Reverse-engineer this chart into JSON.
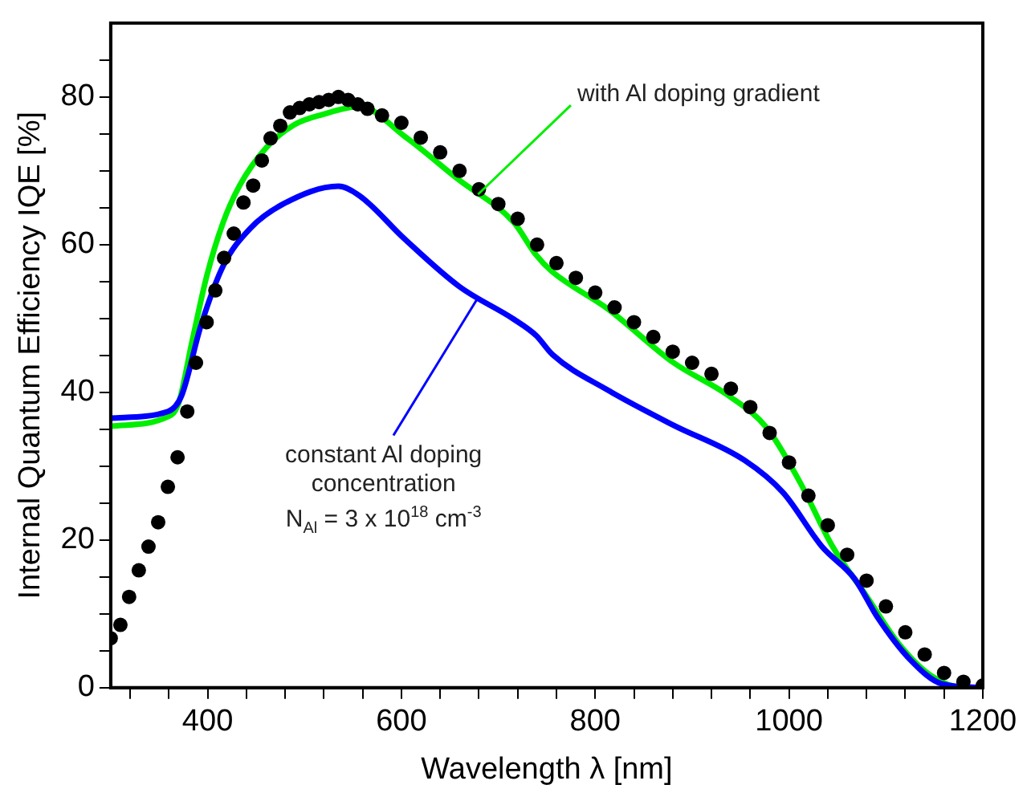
{
  "chart_data": {
    "type": "line",
    "xlabel": "Wavelength λ [nm]",
    "ylabel": "Internal Quantum Efficiency IQE [%]",
    "xlim": [
      300,
      1200
    ],
    "ylim": [
      0,
      90
    ],
    "xticks": [
      {
        "value": 320,
        "label": null
      },
      {
        "value": 360,
        "label": null
      },
      400,
      {
        "value": 440,
        "label": null
      },
      {
        "value": 480,
        "label": null
      },
      {
        "value": 520,
        "label": null
      },
      {
        "value": 560,
        "label": null
      },
      600,
      {
        "value": 640,
        "label": null
      },
      {
        "value": 680,
        "label": null
      },
      {
        "value": 720,
        "label": null
      },
      {
        "value": 760,
        "label": null
      },
      800,
      {
        "value": 840,
        "label": null
      },
      {
        "value": 880,
        "label": null
      },
      {
        "value": 920,
        "label": null
      },
      {
        "value": 960,
        "label": null
      },
      1000,
      {
        "value": 1040,
        "label": null
      },
      {
        "value": 1080,
        "label": null
      },
      {
        "value": 1120,
        "label": null
      },
      {
        "value": 1160,
        "label": null
      },
      1200
    ],
    "yticks": [
      0,
      {
        "value": 5,
        "label": null
      },
      {
        "value": 10,
        "label": null
      },
      {
        "value": 15,
        "label": null
      },
      20,
      {
        "value": 25,
        "label": null
      },
      {
        "value": 30,
        "label": null
      },
      {
        "value": 35,
        "label": null
      },
      40,
      {
        "value": 45,
        "label": null
      },
      {
        "value": 50,
        "label": null
      },
      {
        "value": 55,
        "label": null
      },
      60,
      {
        "value": 65,
        "label": null
      },
      {
        "value": 70,
        "label": null
      },
      {
        "value": 75,
        "label": null
      },
      80,
      {
        "value": 85,
        "label": null
      }
    ],
    "grid": false,
    "legend": false,
    "series": [
      {
        "type": "scatter",
        "marker": "circle",
        "color": "#000000",
        "x": [
          300,
          310,
          319,
          329,
          339,
          349,
          359,
          369,
          379,
          388,
          399,
          408,
          417,
          427,
          437,
          447,
          456,
          465,
          475,
          485,
          495,
          505,
          515,
          525,
          535,
          545,
          555,
          565,
          580,
          600,
          620,
          640,
          660,
          680,
          700,
          720,
          740,
          760,
          780,
          800,
          820,
          840,
          860,
          880,
          900,
          920,
          940,
          960,
          980,
          1000,
          1020,
          1040,
          1060,
          1080,
          1100,
          1120,
          1140,
          1160,
          1180,
          1200
        ],
        "values": [
          6.7,
          8.5,
          12.3,
          15.9,
          19.1,
          22.4,
          27.2,
          31.2,
          37.4,
          44,
          49.5,
          53.8,
          58.2,
          61.5,
          65.7,
          68,
          71.4,
          74.4,
          76.1,
          77.9,
          78.5,
          79,
          79.3,
          79.6,
          80,
          79.6,
          79,
          78.4,
          77.5,
          76.5,
          74.5,
          72.5,
          70,
          67.5,
          65.5,
          63.5,
          60,
          57.5,
          55.5,
          53.5,
          51.5,
          49.5,
          47.5,
          45.5,
          44,
          42.5,
          40.5,
          38,
          34.5,
          30.5,
          26,
          22,
          18,
          14.5,
          11,
          7.5,
          4.5,
          2,
          0.8,
          0.3
        ]
      },
      {
        "type": "line",
        "marker": "none",
        "line_style": "solid",
        "color": "#0000ff",
        "x": [
          300,
          359,
          373,
          393,
          416,
          444,
          478,
          535,
          557,
          603,
          660,
          716,
          739,
          756,
          813,
          880,
          954,
          994,
          1034,
          1068,
          1091,
          1125,
          1158,
          1200
        ],
        "values": [
          36.5,
          37.4,
          39.5,
          49,
          57.1,
          62.2,
          65.5,
          67.9,
          66.6,
          60.8,
          54.3,
          49.9,
          47.7,
          45.1,
          40.3,
          35.6,
          30.8,
          26.4,
          19.1,
          14.7,
          9.6,
          3.8,
          0.5,
          0
        ]
      },
      {
        "type": "line",
        "marker": "none",
        "line_style": "solid",
        "color": "#00ee00",
        "x": [
          300,
          359,
          370,
          384,
          399,
          416,
          433,
          461,
          489,
          518,
          557,
          603,
          659,
          716,
          739,
          755,
          813,
          881,
          937,
          977,
          1011,
          1045,
          1079,
          1113,
          1147,
          1181,
          1200
        ],
        "values": [
          35.4,
          36.7,
          38.5,
          46.9,
          55.7,
          63,
          68,
          73.2,
          76.2,
          77.6,
          78.7,
          74.7,
          68.8,
          63,
          58.6,
          56.4,
          51.3,
          44,
          39.6,
          35.2,
          27.9,
          19.1,
          12.6,
          6,
          1.6,
          0,
          0
        ]
      }
    ],
    "annotations": [
      {
        "text": "with Al doping gradient",
        "x": 679,
        "y": 66.8
      },
      {
        "text": "constant Al doping\nconcentration\nN$_{Al}$ = 3 x 10$^{18}$ cm$^{-3}$",
        "x": 679,
        "y": 52.8
      }
    ]
  }
}
